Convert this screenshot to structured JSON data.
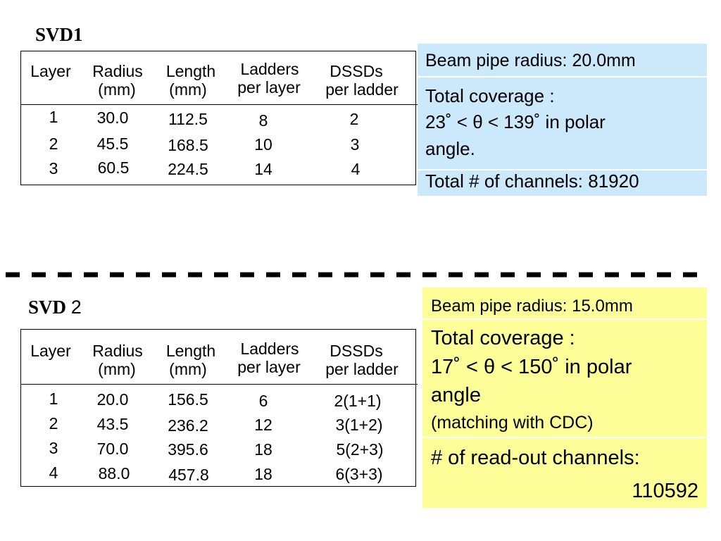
{
  "svd1": {
    "title": "SVD1",
    "headers": {
      "layer": "Layer",
      "radius": "Radius",
      "radius_unit": "(mm)",
      "length": "Length",
      "length_unit": "(mm)",
      "ladders": "Ladders",
      "ladders_sub": "per layer",
      "dssds": "DSSDs",
      "dssds_sub": "per ladder"
    },
    "rows": [
      {
        "layer": "1",
        "radius": "30.0",
        "length": "112.5",
        "ladders": "8",
        "dssds": "2"
      },
      {
        "layer": "2",
        "radius": "45.5",
        "length": "168.5",
        "ladders": "10",
        "dssds": "3"
      },
      {
        "layer": "3",
        "radius": "60.5",
        "length": "224.5",
        "ladders": "14",
        "dssds": "4"
      }
    ],
    "info": {
      "bg": "#cce8fb",
      "beam_pipe": "Beam pipe radius: 20.0mm",
      "coverage_label": "Total coverage :",
      "coverage_range": "23˚ < θ < 139˚ in  polar",
      "coverage_end": "angle.",
      "channels": "Total # of channels: 81920"
    }
  },
  "svd2": {
    "title": "SVD",
    "title_num": "2",
    "headers": {
      "layer": "Layer",
      "radius": "Radius",
      "radius_unit": "(mm)",
      "length": "Length",
      "length_unit": "(mm)",
      "ladders": "Ladders",
      "ladders_sub": "per layer",
      "dssds": "DSSDs",
      "dssds_sub": "per ladder"
    },
    "rows": [
      {
        "layer": "1",
        "radius": "20.0",
        "length": "156.5",
        "ladders": "6",
        "dssds": "2(1+1)"
      },
      {
        "layer": "2",
        "radius": "43.5",
        "length": "236.2",
        "ladders": "12",
        "dssds": "3(1+2)"
      },
      {
        "layer": "3",
        "radius": "70.0",
        "length": "395.6",
        "ladders": "18",
        "dssds": "5(2+3)"
      },
      {
        "layer": "4",
        "radius": "88.0",
        "length": "457.8",
        "ladders": "18",
        "dssds": "6(3+3)"
      }
    ],
    "info": {
      "bg": "#ffff99",
      "beam_pipe": "Beam pipe radius: 15.0mm",
      "coverage_label": "Total coverage :",
      "coverage_range": "17˚  < θ < 150˚  in polar",
      "coverage_end": "angle",
      "matching": "(matching with CDC)",
      "readout_label": "# of read-out channels:",
      "readout_value": "110592"
    }
  }
}
